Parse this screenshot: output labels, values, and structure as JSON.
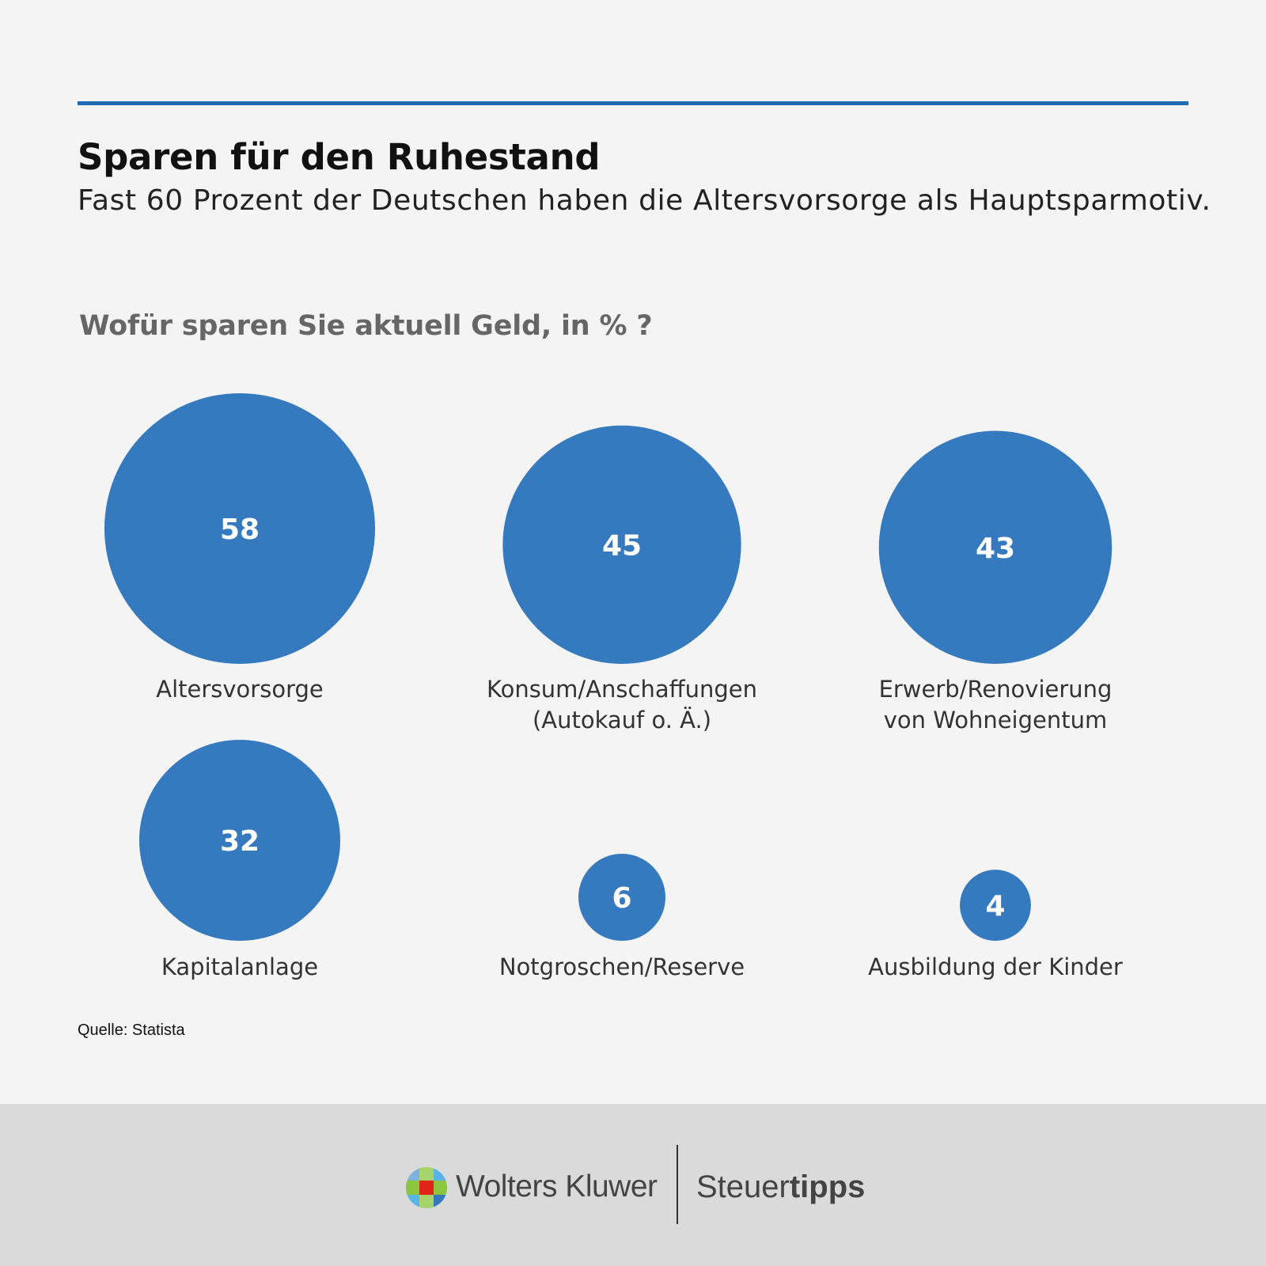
{
  "header": {
    "title": "Sparen für den Ruhestand",
    "subtitle": "Fast 60 Prozent der Deutschen haben die Altersvorsorge als Hauptsparmotiv."
  },
  "chart_data": {
    "type": "bubble",
    "title": "Wofür sparen Sie aktuell Geld, in % ?",
    "unit": "%",
    "color": "#3579bf",
    "label_color": "#ffffff",
    "items": [
      {
        "label": [
          "Altersvorsorge"
        ],
        "value": 58
      },
      {
        "label": [
          "Konsum/Anschaffungen",
          "(Autokauf o. Ä.)"
        ],
        "value": 45
      },
      {
        "label": [
          "Erwerb/Renovierung",
          "von Wohneigentum"
        ],
        "value": 43
      },
      {
        "label": [
          "Kapitalanlage"
        ],
        "value": 32
      },
      {
        "label": [
          "Notgroschen/Reserve"
        ],
        "value": 6
      },
      {
        "label": [
          "Ausbildung der Kinder"
        ],
        "value": 4
      }
    ]
  },
  "source": "Quelle: Statista",
  "footer": {
    "brand_left": "Wolters Kluwer",
    "brand_right_light": "Steuer",
    "brand_right_bold": "tipps",
    "accent_colors": [
      "#3579bf",
      "#8cc63f",
      "#e2231a",
      "#5ab4e5"
    ]
  }
}
